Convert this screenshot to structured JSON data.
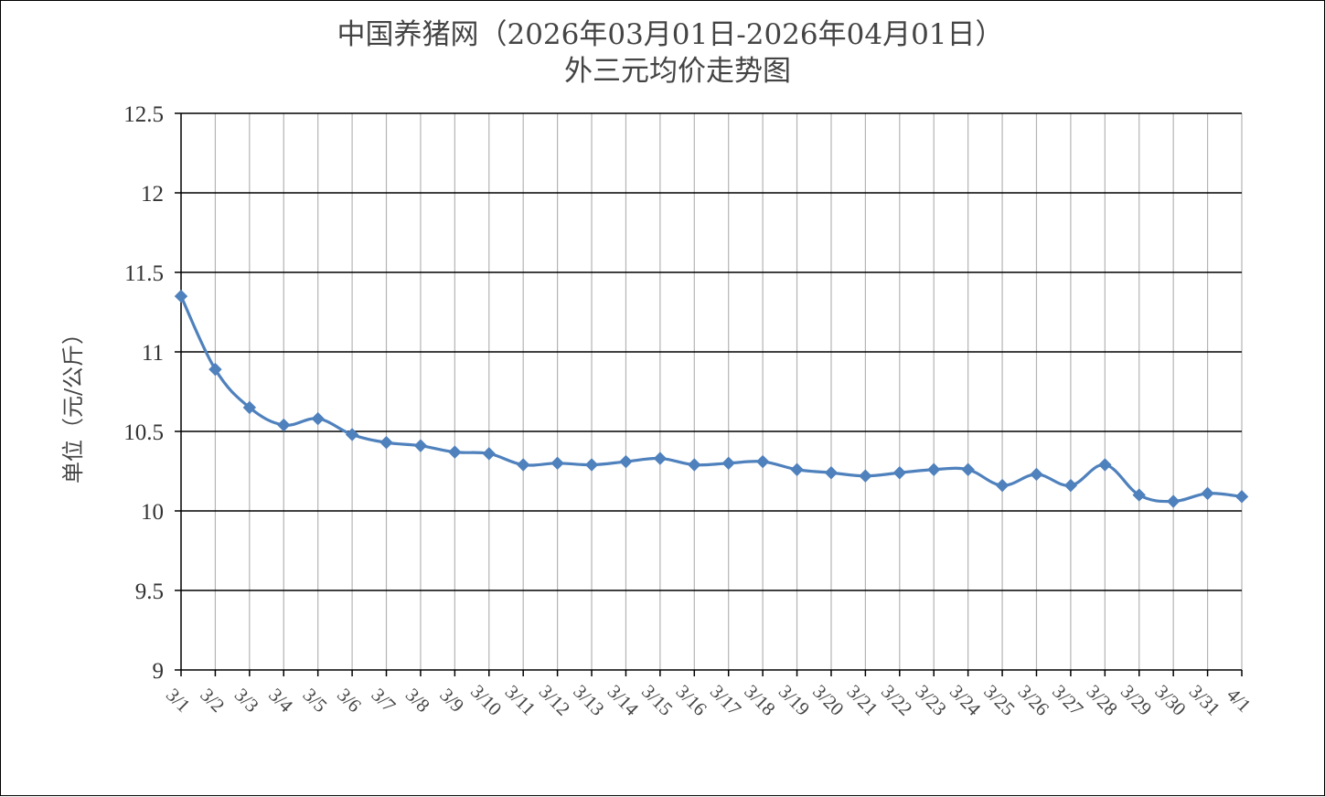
{
  "chart_data": {
    "type": "line",
    "title": "中国养猪网（2026年03月01日-2026年04月01日）",
    "subtitle": "外三元均价走势图",
    "ylabel": "单位（元/公斤）",
    "xlabel": "",
    "ylim": [
      9,
      12.5
    ],
    "yticks": [
      "12.5",
      "12",
      "11.5",
      "11",
      "10.5",
      "10",
      "9.5",
      "9"
    ],
    "ytick_values": [
      12.5,
      12,
      11.5,
      11,
      10.5,
      10,
      9.5,
      9
    ],
    "grid": "horizontal and vertical",
    "legend": "none",
    "categories": [
      "3/1",
      "3/2",
      "3/3",
      "3/4",
      "3/5",
      "3/6",
      "3/7",
      "3/8",
      "3/9",
      "3/10",
      "3/11",
      "3/12",
      "3/13",
      "3/14",
      "3/15",
      "3/16",
      "3/17",
      "3/18",
      "3/19",
      "3/20",
      "3/21",
      "3/22",
      "3/23",
      "3/24",
      "3/25",
      "3/26",
      "3/27",
      "3/28",
      "3/29",
      "3/30",
      "3/31",
      "4/1"
    ],
    "values": [
      11.35,
      10.89,
      10.65,
      10.54,
      10.58,
      10.48,
      10.43,
      10.41,
      10.37,
      10.36,
      10.29,
      10.3,
      10.29,
      10.31,
      10.33,
      10.29,
      10.3,
      10.31,
      10.26,
      10.24,
      10.22,
      10.24,
      10.26,
      10.26,
      10.16,
      10.23,
      10.16,
      10.29,
      10.1,
      10.06,
      10.11,
      10.09
    ],
    "line_color": "#4F81BD",
    "marker": "diamond"
  }
}
